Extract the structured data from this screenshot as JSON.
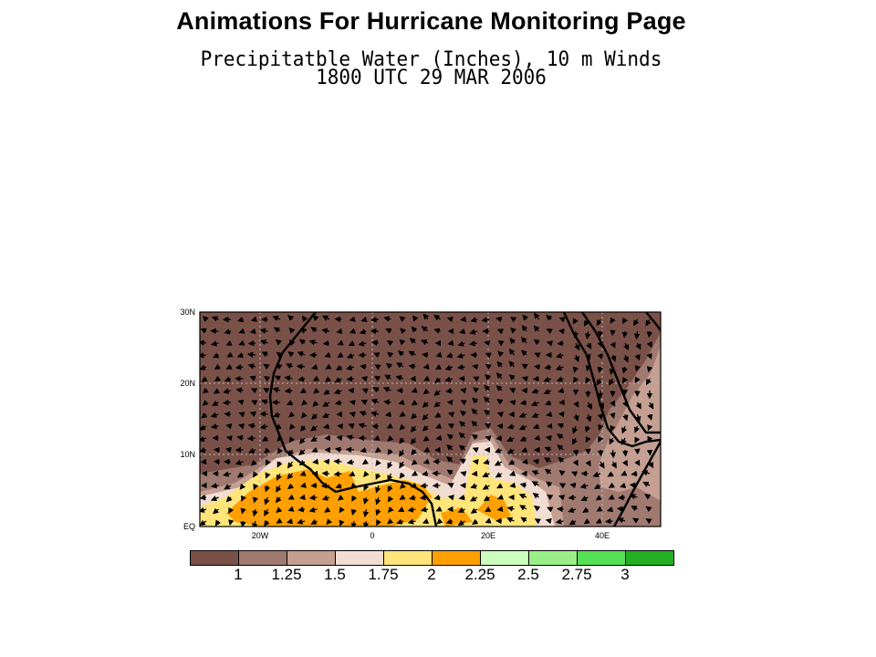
{
  "page": {
    "title": "Animations For Hurricane Monitoring Page"
  },
  "map": {
    "title_line1": "Precipitatble Water (Inches), 10 m Winds",
    "title_line2": "1800 UTC 29 MAR 2006",
    "lat_labels": [
      "30N",
      "20N",
      "10N",
      "EQ"
    ],
    "lon_labels": [
      "20W",
      "0",
      "20E",
      "40E"
    ],
    "extent": {
      "lon_min": -30,
      "lon_max": 50,
      "lat_min": 0,
      "lat_max": 30
    },
    "colors": {
      "lt_1": "#7a5148",
      "1_to_1.25": "#a07a70",
      "1.25_to_1.5": "#c49f92",
      "1.5_to_1.75": "#f1ddd2",
      "1.75_to_2": "#ffe57a",
      "2_to_2.25": "#ff9f00",
      "2.25_to_2.5": "#ccffbb",
      "2.5_to_2.75": "#99ee88",
      "2.75_to_3": "#55e055",
      "gt_3": "#22b022"
    }
  },
  "colorbar": {
    "labels": [
      "1",
      "1.25",
      "1.5",
      "1.75",
      "2",
      "2.25",
      "2.5",
      "2.75",
      "3"
    ],
    "colors": [
      "#7a5148",
      "#a07a70",
      "#c49f92",
      "#f1ddd2",
      "#ffe57a",
      "#ff9f00",
      "#ccffbb",
      "#99ee88",
      "#55e055",
      "#22b022"
    ]
  }
}
